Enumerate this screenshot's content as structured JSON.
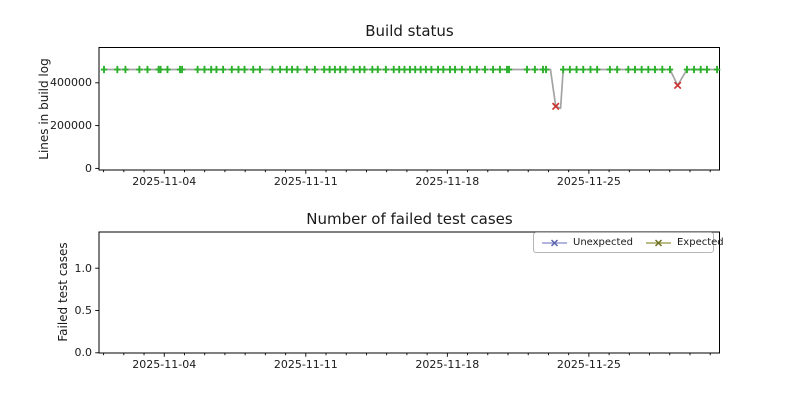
{
  "x_axis": {
    "epoch": "2025-11-01",
    "major_ticks": [
      {
        "day": 3,
        "label": "2025-11-04"
      },
      {
        "day": 10,
        "label": "2025-11-11"
      },
      {
        "day": 17,
        "label": "2025-11-18"
      },
      {
        "day": 24,
        "label": "2025-11-25"
      }
    ],
    "minor_tick_days": {
      "from": 0,
      "to": 30,
      "step": 1
    },
    "xlim_days": [
      -0.23,
      30.46
    ]
  },
  "chart_data": [
    {
      "name": "build-status",
      "type": "line",
      "title": "Build status",
      "xlabel": "",
      "ylabel": "Lines in build log",
      "ylim": [
        0,
        565000
      ],
      "grid": false,
      "yticks": [
        {
          "value": 0,
          "label": "0"
        },
        {
          "value": 200000,
          "label": "200000"
        },
        {
          "value": 400000,
          "label": "400000"
        }
      ],
      "line": {
        "color": "#a3a3a3",
        "points": [
          [
            0.02,
            462000
          ],
          [
            22.1,
            462000
          ],
          [
            22.36,
            290000
          ],
          [
            22.6,
            281000
          ],
          [
            22.73,
            462000
          ],
          [
            28.01,
            462000
          ],
          [
            28.39,
            388000
          ],
          [
            28.85,
            462000
          ],
          [
            30.34,
            462000
          ]
        ]
      },
      "series": [
        {
          "name": "successful-builds",
          "marker": "plus",
          "color": "#2ab02a",
          "value": 462000,
          "days": [
            0.02,
            0.68,
            1.08,
            1.77,
            2.17,
            2.72,
            2.82,
            3.16,
            3.78,
            3.88,
            4.65,
            4.99,
            5.32,
            5.58,
            5.91,
            6.34,
            6.67,
            6.97,
            7.4,
            7.73,
            8.35,
            8.73,
            9.06,
            9.32,
            9.59,
            10.05,
            10.45,
            10.91,
            11.18,
            11.44,
            11.7,
            11.97,
            12.37,
            12.67,
            12.9,
            13.29,
            13.56,
            13.96,
            14.35,
            14.62,
            14.88,
            15.15,
            15.41,
            15.68,
            15.94,
            16.21,
            16.54,
            16.8,
            17.13,
            17.38,
            17.72,
            18.12,
            18.46,
            18.86,
            19.26,
            19.6,
            19.95,
            20.05,
            20.94,
            21.33,
            21.73,
            21.88,
            22.73,
            23.06,
            23.39,
            23.72,
            24.08,
            24.41,
            25.04,
            25.4,
            25.95,
            26.28,
            26.61,
            26.94,
            27.27,
            27.63,
            28.01,
            28.85,
            29.2,
            29.53,
            29.84,
            30.34
          ]
        },
        {
          "name": "failed-builds",
          "marker": "x",
          "color": "#cc3333",
          "points": [
            {
              "day": 22.36,
              "date": "2025-11-23",
              "value": 290000
            },
            {
              "day": 28.39,
              "date": "2025-11-29",
              "value": 388000
            }
          ]
        }
      ]
    },
    {
      "name": "failed-test-cases",
      "type": "line",
      "title": "Number of failed test cases",
      "xlabel": "",
      "ylabel": "Failed test cases",
      "ylim": [
        0,
        1.43
      ],
      "grid": false,
      "yticks": [
        {
          "value": 0,
          "label": "0.0"
        },
        {
          "value": 0.5,
          "label": "0.5"
        },
        {
          "value": 1,
          "label": "1.0"
        }
      ],
      "legend": {
        "position": "upper right",
        "entries": [
          {
            "label": "Unexpected",
            "line_color": "#989dd3",
            "marker_color": "#5c63ae"
          },
          {
            "label": "Expected",
            "line_color": "#a4a65c",
            "marker_color": "#6e7024"
          }
        ]
      },
      "series": [
        {
          "name": "Unexpected",
          "marker": "x",
          "points": []
        },
        {
          "name": "Expected",
          "marker": "x",
          "points": []
        }
      ]
    }
  ]
}
